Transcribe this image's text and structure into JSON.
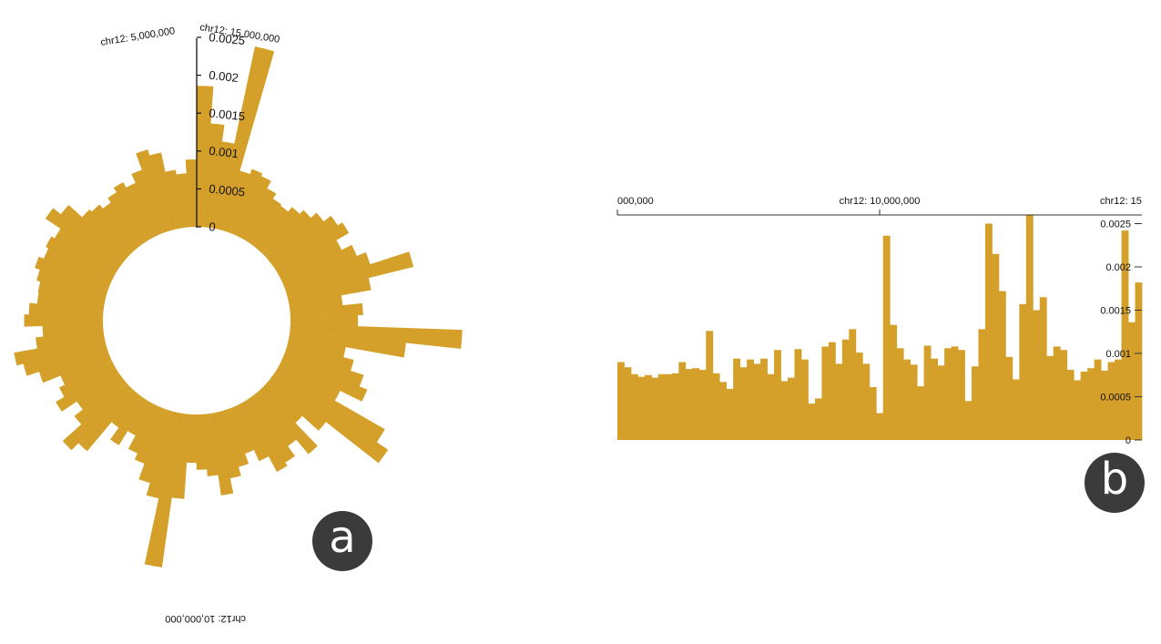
{
  "accent_color": "#D4A02A",
  "badge_color": "#3b3b3b",
  "panels": {
    "a": {
      "badge": "a"
    },
    "b": {
      "badge": "b"
    }
  },
  "chart_data": [
    {
      "type": "bar",
      "layout": "radial",
      "title": "",
      "position_labels": [
        "chr12: 5,000,000",
        "chr12: 15,000,000",
        "chr12: 10,000,000"
      ],
      "axis_ticks": [
        "0",
        "0.0005",
        "0.001",
        "0.0015",
        "0.002",
        "0.0025"
      ],
      "ylim": [
        0,
        0.0025
      ],
      "values": [
        0.00186,
        0.00137,
        0.00115,
        0.00246,
        0.00082,
        0.00089,
        0.00085,
        0.00074,
        0.00066,
        0.00064,
        0.00072,
        0.00079,
        0.00089,
        0.00101,
        0.00108,
        0.00089,
        0.00104,
        0.00117,
        0.00171,
        0.0011,
        0.0007,
        0.00096,
        0.00089,
        0.00227,
        0.00154,
        0.00076,
        0.0009,
        0.00108,
        0.00119,
        0.00087,
        0.00163,
        0.00181,
        0.00093,
        0.00064,
        0.00106,
        0.00081,
        0.00097,
        0.00102,
        0.00079,
        0.00063,
        0.00077,
        0.00089,
        0.00109,
        0.00082,
        0.00073,
        0.00064,
        0.00112,
        0.00205,
        0.00116,
        0.00099,
        0.00077,
        0.00068,
        0.00048,
        0.0007,
        0.00051,
        0.00101,
        0.00114,
        0.00081,
        0.00067,
        0.00091,
        0.00078,
        0.0007,
        0.00095,
        0.00112,
        0.00121,
        0.0009,
        0.0008,
        0.00104,
        0.00098,
        0.00088,
        0.00089,
        0.00094,
        0.00101,
        0.00094,
        0.00098,
        0.00093,
        0.00117,
        0.00104,
        0.0008,
        0.00076,
        0.00069,
        0.00076,
        0.00083,
        0.00075,
        0.00088,
        0.00111,
        0.00103,
        0.00077,
        0.00071,
        0.00089
      ]
    },
    {
      "type": "bar",
      "layout": "linear",
      "title": "",
      "x_tick_labels": [
        "000,000",
        "chr12: 10,000,000",
        "chr12: 15"
      ],
      "y_tick_labels": [
        "0",
        "0.0005",
        "0.001",
        "0.0015",
        "0.002",
        "0.0025"
      ],
      "ylim": [
        0,
        0.0026
      ],
      "values": [
        0.0009,
        0.00084,
        0.00076,
        0.00073,
        0.00075,
        0.00072,
        0.00076,
        0.00076,
        0.00077,
        0.0009,
        0.00082,
        0.00083,
        0.00081,
        0.00126,
        0.00077,
        0.00067,
        0.00059,
        0.00094,
        0.00084,
        0.00093,
        0.00088,
        0.00094,
        0.00076,
        0.00104,
        0.00068,
        0.00072,
        0.00105,
        0.00093,
        0.00042,
        0.00048,
        0.00108,
        0.00113,
        0.00088,
        0.00116,
        0.00128,
        0.00101,
        0.00088,
        0.00061,
        0.00031,
        0.00236,
        0.00133,
        0.00106,
        0.00093,
        0.00087,
        0.00062,
        0.00109,
        0.00094,
        0.00086,
        0.00106,
        0.00108,
        0.00104,
        0.00045,
        0.00085,
        0.00128,
        0.0025,
        0.00215,
        0.00172,
        0.00096,
        0.0007,
        0.00157,
        0.0026,
        0.0015,
        0.00165,
        0.00097,
        0.00108,
        0.00104,
        0.00081,
        0.00069,
        0.00079,
        0.00083,
        0.00093,
        0.0008,
        0.0009,
        0.00093,
        0.00242,
        0.00136,
        0.00182
      ]
    }
  ]
}
